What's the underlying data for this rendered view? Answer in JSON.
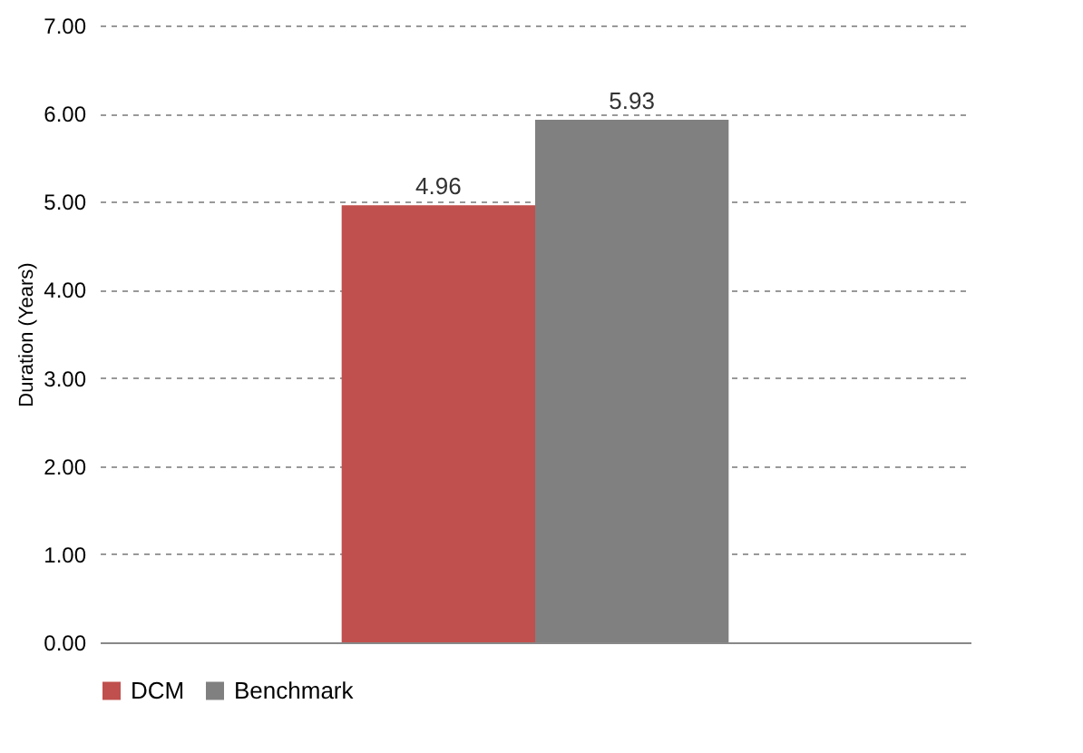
{
  "chart_data": {
    "type": "bar",
    "ylabel": "Duration (Years)",
    "categories": [
      null
    ],
    "series": [
      {
        "name": "DCM",
        "color": "#c0504d",
        "values": [
          4.96
        ]
      },
      {
        "name": "Benchmark",
        "color": "#808080",
        "values": [
          5.93
        ]
      }
    ],
    "ylim": [
      0,
      7
    ],
    "yticks": [
      {
        "value": 0,
        "label": "0.00"
      },
      {
        "value": 1,
        "label": "1.00"
      },
      {
        "value": 2,
        "label": "2.00"
      },
      {
        "value": 3,
        "label": "3.00"
      },
      {
        "value": 4,
        "label": "4.00"
      },
      {
        "value": 5,
        "label": "5.00"
      },
      {
        "value": 6,
        "label": "6.00"
      },
      {
        "value": 7,
        "label": "7.00"
      }
    ],
    "grid": "y",
    "data_labels": true,
    "legend": "bottom"
  }
}
